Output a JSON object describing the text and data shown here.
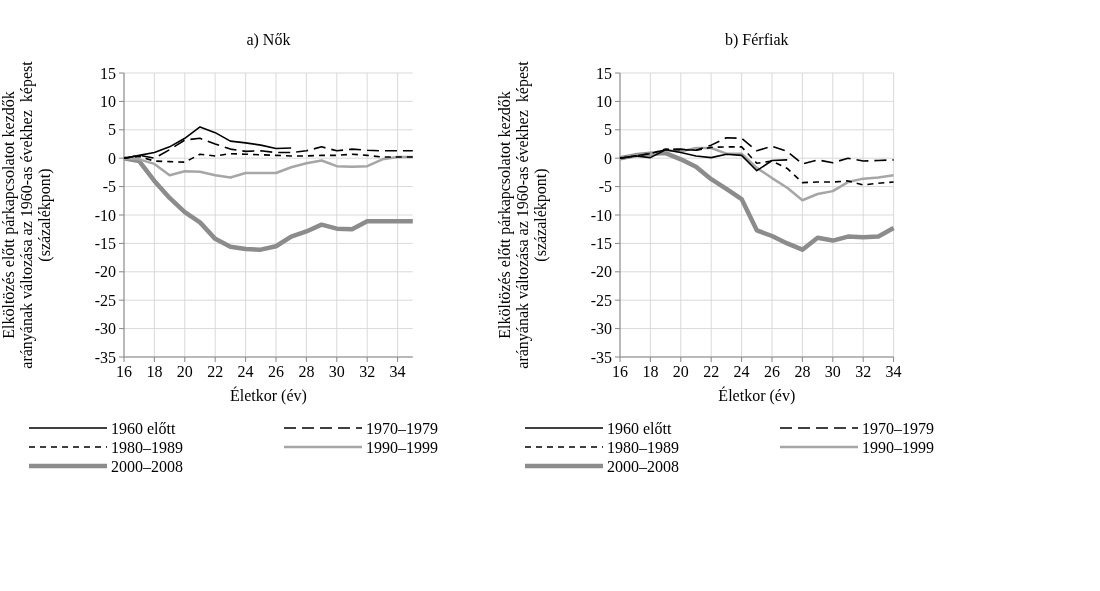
{
  "chart_data": [
    {
      "type": "line",
      "title": "a) Nők",
      "xlabel": "Életkor (év)",
      "ylabel": "Elköltözés előtt párkapcsolatot kezdők\narányának változása az 1960-as évekhez  képest\n(százalékpont)",
      "x": [
        16,
        17,
        18,
        19,
        20,
        21,
        22,
        23,
        24,
        25,
        26,
        27,
        28,
        29,
        30,
        31,
        32,
        33,
        34,
        35
      ],
      "xlim": [
        16,
        35
      ],
      "xticks": [
        16,
        18,
        20,
        22,
        24,
        26,
        28,
        30,
        32,
        34
      ],
      "ylim": [
        -35,
        15
      ],
      "yticks": [
        -35,
        -30,
        -25,
        -20,
        -15,
        -10,
        -5,
        0,
        5,
        10,
        15
      ],
      "grid": true,
      "legend": "bottom",
      "series": [
        {
          "name": "1960 előtt",
          "color": "#000000",
          "line_style": "solid",
          "values": [
            0,
            0.5,
            1,
            2,
            3.5,
            5.5,
            4.5,
            3,
            2.7,
            2.3,
            1.7,
            1.8,
            null,
            null,
            null,
            null,
            null,
            null,
            null,
            null
          ]
        },
        {
          "name": "1970–1979",
          "color": "#000000",
          "line_style": "dashed",
          "values": [
            0,
            0.5,
            0,
            1.5,
            3.2,
            3.5,
            2.5,
            1.6,
            1.2,
            1.3,
            1,
            1,
            1.3,
            2,
            1.3,
            1.6,
            1.4,
            1.3,
            1.3,
            1.3
          ]
        },
        {
          "name": "1980–1989",
          "color": "#000000",
          "line_style": "dotted",
          "values": [
            0,
            0.3,
            -0.5,
            -0.6,
            -0.7,
            0.7,
            0.4,
            0.8,
            0.7,
            0.6,
            0.5,
            0.4,
            0.4,
            0.5,
            0.5,
            0.7,
            0.5,
            0.2,
            0.2,
            0.2
          ]
        },
        {
          "name": "1990–1999",
          "color": "#a6a6a6",
          "line_style": "solid",
          "values": [
            0,
            -0.2,
            -1,
            -3,
            -2.3,
            -2.4,
            -3,
            -3.4,
            -2.6,
            -2.6,
            -2.6,
            -1.6,
            -0.9,
            -0.4,
            -1.4,
            -1.5,
            -1.4,
            -0.2,
            0.2,
            0.2
          ]
        },
        {
          "name": "2000–2008",
          "color": "#8c8c8c",
          "line_style": "solid",
          "values": [
            0,
            -0.5,
            -4,
            -7,
            -9.5,
            -11.3,
            -14.2,
            -15.6,
            -16,
            -16.1,
            -15.5,
            -13.8,
            -12.9,
            -11.7,
            -12.4,
            -12.5,
            -11.1,
            -11.1,
            -11.1,
            -11.1
          ]
        }
      ]
    },
    {
      "type": "line",
      "title": "b) Férfiak",
      "xlabel": "Életkor (év)",
      "ylabel": "Elköltözés előtt párkapcsolatot kezdők\narányának változása az 1960-as évekhez  képest\n(százalékpont)",
      "x": [
        16,
        17,
        18,
        19,
        20,
        21,
        22,
        23,
        24,
        25,
        26,
        27,
        28,
        29,
        30,
        31,
        32,
        33,
        34
      ],
      "xlim": [
        16,
        34
      ],
      "xticks": [
        16,
        18,
        20,
        22,
        24,
        26,
        28,
        30,
        32,
        34
      ],
      "ylim": [
        -35,
        15
      ],
      "yticks": [
        -35,
        -30,
        -25,
        -20,
        -15,
        -10,
        -5,
        0,
        5,
        10,
        15
      ],
      "grid": true,
      "legend": "bottom",
      "series": [
        {
          "name": "1960 előtt",
          "color": "#000000",
          "line_style": "solid",
          "values": [
            0,
            0.4,
            0.1,
            1.5,
            1,
            0.4,
            0.1,
            0.7,
            0.5,
            -2.2,
            -0.4,
            -0.3,
            null,
            null,
            null,
            null,
            null,
            null,
            null
          ]
        },
        {
          "name": "1970–1979",
          "color": "#000000",
          "line_style": "dashed",
          "values": [
            0,
            0.4,
            0.8,
            1.5,
            1.6,
            1.4,
            2.3,
            3.6,
            3.5,
            1.3,
            2.1,
            1.2,
            -1,
            -0.3,
            -0.8,
            0,
            -0.5,
            -0.4,
            -0.3
          ]
        },
        {
          "name": "1980–1989",
          "color": "#000000",
          "line_style": "dotted",
          "values": [
            0,
            0.4,
            0.8,
            1.6,
            1.5,
            1.4,
            1.9,
            2,
            2,
            -0.9,
            -0.5,
            -1.8,
            -4.3,
            -4.2,
            -4.2,
            -4,
            -4.7,
            -4.4,
            -4.2
          ]
        },
        {
          "name": "1990–1999",
          "color": "#a6a6a6",
          "line_style": "solid",
          "values": [
            0,
            0.5,
            0.7,
            1.4,
            1.2,
            1.8,
            1.8,
            0.8,
            0.8,
            -1.7,
            -3.5,
            -5.2,
            -7.4,
            -6.3,
            -5.8,
            -4.2,
            -3.6,
            -3.4,
            -3
          ]
        },
        {
          "name": "2000–2008",
          "color": "#8c8c8c",
          "line_style": "solid",
          "values": [
            0,
            0.5,
            0.8,
            0.9,
            -0.2,
            -1.5,
            -3.7,
            -5.4,
            -7.2,
            -12.7,
            -13.7,
            -15,
            -16.1,
            -14,
            -14.5,
            -13.8,
            -13.9,
            -13.8,
            -12.3
          ]
        }
      ]
    }
  ]
}
